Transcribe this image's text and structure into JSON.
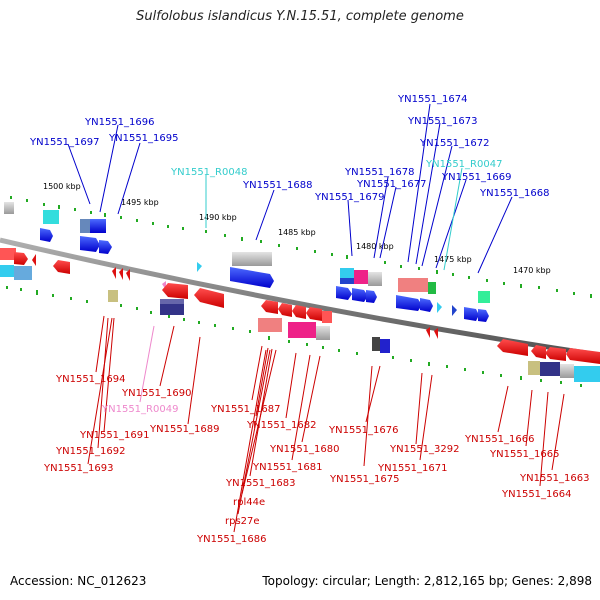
{
  "title": "Sulfolobus islandicus Y.N.15.51, complete genome",
  "footer": {
    "accession": "Accession: NC_012623",
    "info": "Topology: circular; Length: 2,812,165 bp; Genes: 2,898"
  },
  "colors": {
    "forward_label": "#0000cc",
    "reverse_label": "#cc0000",
    "rna_forward_label": "#33cccc",
    "rna_reverse_label": "#ee88cc",
    "axis": "#808080",
    "ticks": "#22aa22"
  },
  "scale_labels": [
    "1500 kbp",
    "1495 kbp",
    "1490 kbp",
    "1485 kbp",
    "1480 kbp",
    "1475 kbp",
    "1470 kbp"
  ],
  "forward_genes": [
    "YN1551_1697",
    "YN1551_1696",
    "YN1551_1695",
    "YN1551_R0048",
    "YN1551_1688",
    "YN1551_1679",
    "YN1551_1678",
    "YN1551_1677",
    "YN1551_1674",
    "YN1551_1673",
    "YN1551_1672",
    "YN1551_R0047",
    "YN1551_1669",
    "YN1551_1668"
  ],
  "reverse_genes": [
    "YN1551_1694",
    "YN1551_1690",
    "YN1551_R0049",
    "YN1551_1691",
    "YN1551_1692",
    "YN1551_1693",
    "YN1551_1689",
    "YN1551_1687",
    "YN1551_1682",
    "YN1551_1680",
    "YN1551_1681",
    "YN1551_1683",
    "rpl44e",
    "rps27e",
    "YN1551_1686",
    "YN1551_1676",
    "YN1551_1675",
    "YN1551_3292",
    "YN1551_1671",
    "YN1551_1666",
    "YN1551_1665",
    "YN1551_1663",
    "YN1551_1664"
  ]
}
